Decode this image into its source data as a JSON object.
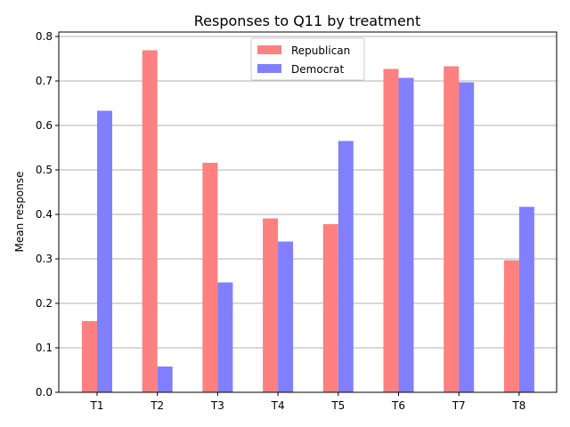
{
  "chart_data": {
    "type": "bar",
    "title": "Responses to Q11 by treatment",
    "xlabel": "",
    "ylabel": "Mean response",
    "categories": [
      "T1",
      "T2",
      "T3",
      "T4",
      "T5",
      "T6",
      "T7",
      "T8"
    ],
    "series": [
      {
        "name": "Republican",
        "color": "#ff8080",
        "values": [
          0.16,
          0.769,
          0.516,
          0.391,
          0.378,
          0.727,
          0.733,
          0.297
        ]
      },
      {
        "name": "Democrat",
        "color": "#8080ff",
        "values": [
          0.633,
          0.058,
          0.247,
          0.339,
          0.565,
          0.707,
          0.697,
          0.417
        ]
      }
    ],
    "ylim": [
      0,
      0.81
    ],
    "yticks": [
      0.0,
      0.1,
      0.2,
      0.3,
      0.4,
      0.5,
      0.6,
      0.7,
      0.8
    ],
    "ytick_labels": [
      "0.0",
      "0.1",
      "0.2",
      "0.3",
      "0.4",
      "0.5",
      "0.6",
      "0.7",
      "0.8"
    ],
    "grid": "horizontal",
    "legend": "top-center"
  }
}
